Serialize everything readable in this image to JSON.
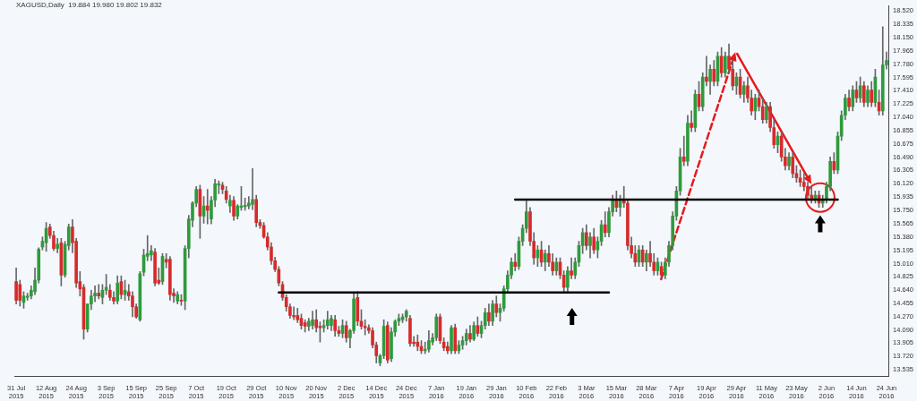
{
  "chart_data": {
    "type": "candlestick",
    "title": "XAGUSD,Daily  19.884 19.980 19.802 19.832",
    "categories": [
      "31 Jul 2015",
      null,
      null,
      null,
      null,
      null,
      null,
      null,
      "12 Aug 2015",
      null,
      null,
      null,
      null,
      null,
      null,
      null,
      "24 Aug 2015",
      null,
      null,
      null,
      null,
      null,
      null,
      null,
      "3 Sep 2015",
      null,
      null,
      null,
      null,
      null,
      null,
      null,
      "15 Sep 2015",
      null,
      null,
      null,
      null,
      null,
      null,
      null,
      "25 Sep 2015",
      null,
      null,
      null,
      null,
      null,
      null,
      null,
      "7 Oct 2015",
      null,
      null,
      null,
      null,
      null,
      null,
      null,
      "19 Oct 2015",
      null,
      null,
      null,
      null,
      null,
      null,
      null,
      "29 Oct 2015",
      null,
      null,
      null,
      null,
      null,
      null,
      null,
      "10 Nov 2015",
      null,
      null,
      null,
      null,
      null,
      null,
      null,
      "20 Nov 2015",
      null,
      null,
      null,
      null,
      null,
      null,
      null,
      "2 Dec 2015",
      null,
      null,
      null,
      null,
      null,
      null,
      null,
      "14 Dec 2015",
      null,
      null,
      null,
      null,
      null,
      null,
      null,
      "24 Dec 2015",
      null,
      null,
      null,
      null,
      null,
      null,
      null,
      "7 Jan 2016",
      null,
      null,
      null,
      null,
      null,
      null,
      null,
      "19 Jan 2016",
      null,
      null,
      null,
      null,
      null,
      null,
      null,
      "29 Jan 2016",
      null,
      null,
      null,
      null,
      null,
      null,
      null,
      "10 Feb 2016",
      null,
      null,
      null,
      null,
      null,
      null,
      null,
      "22 Feb 2016",
      null,
      null,
      null,
      null,
      null,
      null,
      null,
      "3 Mar 2016",
      null,
      null,
      null,
      null,
      null,
      null,
      null,
      "15 Mar 2016",
      null,
      null,
      null,
      null,
      null,
      null,
      null,
      "28 Mar 2016",
      null,
      null,
      null,
      null,
      null,
      null,
      null,
      "7 Apr 2016",
      null,
      null,
      null,
      null,
      null,
      null,
      null,
      "19 Apr 2016",
      null,
      null,
      null,
      null,
      null,
      null,
      null,
      "29 Apr 2016",
      null,
      null,
      null,
      null,
      null,
      null,
      null,
      "11 May 2016",
      null,
      null,
      null,
      null,
      null,
      null,
      null,
      "23 May 2016",
      null,
      null,
      null,
      null,
      null,
      null,
      null,
      "2 Jun 2016",
      null,
      null,
      null,
      null,
      null,
      null,
      null,
      "14 Jun 2016",
      null,
      null,
      null,
      null,
      null,
      null,
      null,
      "24 Jun 2016"
    ],
    "ohlc": [
      [
        14.76,
        14.95,
        14.45,
        14.5
      ],
      [
        14.72,
        14.78,
        14.42,
        14.5
      ],
      [
        14.47,
        14.62,
        14.39,
        14.56
      ],
      [
        14.54,
        14.6,
        14.5,
        14.56
      ],
      [
        14.56,
        14.7,
        14.52,
        14.64
      ],
      [
        14.62,
        14.95,
        14.58,
        14.78
      ],
      [
        14.78,
        15.23,
        14.74,
        15.21
      ],
      [
        15.24,
        15.38,
        15.2,
        15.32
      ],
      [
        15.3,
        15.58,
        15.18,
        15.5
      ],
      [
        15.52,
        15.56,
        15.36,
        15.4
      ],
      [
        15.4,
        15.46,
        15.19,
        15.22
      ],
      [
        15.22,
        15.36,
        15.16,
        15.28
      ],
      [
        15.3,
        15.36,
        14.7,
        14.85
      ],
      [
        14.85,
        15.32,
        14.82,
        15.28
      ],
      [
        15.26,
        15.56,
        15.2,
        15.52
      ],
      [
        15.52,
        15.62,
        15.16,
        15.3
      ],
      [
        15.32,
        15.36,
        14.68,
        14.74
      ],
      [
        14.76,
        14.9,
        14.56,
        14.66
      ],
      [
        14.68,
        14.72,
        13.96,
        14.1
      ],
      [
        14.1,
        14.45,
        14.06,
        14.45
      ],
      [
        14.45,
        14.64,
        14.37,
        14.56
      ],
      [
        14.56,
        14.7,
        14.48,
        14.6
      ],
      [
        14.6,
        14.72,
        14.52,
        14.56
      ],
      [
        14.54,
        14.72,
        14.45,
        14.64
      ],
      [
        14.64,
        14.86,
        14.58,
        14.68
      ],
      [
        14.64,
        14.72,
        14.5,
        14.54
      ],
      [
        14.54,
        14.62,
        14.45,
        14.49
      ],
      [
        14.49,
        14.84,
        14.45,
        14.74
      ],
      [
        14.76,
        14.84,
        14.52,
        14.58
      ],
      [
        14.58,
        14.78,
        14.5,
        14.64
      ],
      [
        14.62,
        14.72,
        14.5,
        14.56
      ],
      [
        14.56,
        14.62,
        14.27,
        14.41
      ],
      [
        14.41,
        14.45,
        14.25,
        14.27
      ],
      [
        14.23,
        14.9,
        14.21,
        14.87
      ],
      [
        14.89,
        15.21,
        14.84,
        15.13
      ],
      [
        15.11,
        15.4,
        15.05,
        15.15
      ],
      [
        15.13,
        15.26,
        15.05,
        15.19
      ],
      [
        15.17,
        15.22,
        14.7,
        14.74
      ],
      [
        14.78,
        14.95,
        14.72,
        14.74
      ],
      [
        14.76,
        15.15,
        14.72,
        15.11
      ],
      [
        15.07,
        15.15,
        14.95,
        15.03
      ],
      [
        15.07,
        15.11,
        14.5,
        14.58
      ],
      [
        14.6,
        14.66,
        14.47,
        14.56
      ],
      [
        14.49,
        14.62,
        14.45,
        14.58
      ],
      [
        14.5,
        14.58,
        14.43,
        14.49
      ],
      [
        14.49,
        15.26,
        14.37,
        15.22
      ],
      [
        15.22,
        15.68,
        15.09,
        15.63
      ],
      [
        15.61,
        15.87,
        15.52,
        15.85
      ],
      [
        15.85,
        16.08,
        15.8,
        16.04
      ],
      [
        16.04,
        16.1,
        15.36,
        15.67
      ],
      [
        15.67,
        15.94,
        15.57,
        15.81
      ],
      [
        15.81,
        16.04,
        15.56,
        15.75
      ],
      [
        15.63,
        15.94,
        15.56,
        15.89
      ],
      [
        15.89,
        16.18,
        15.8,
        16.12
      ],
      [
        16.1,
        16.16,
        15.98,
        16.12
      ],
      [
        16.1,
        16.14,
        15.98,
        16.04
      ],
      [
        16.02,
        16.08,
        15.85,
        15.9
      ],
      [
        15.81,
        15.96,
        15.72,
        15.89
      ],
      [
        15.89,
        15.94,
        15.61,
        15.67
      ],
      [
        15.67,
        15.83,
        15.63,
        15.81
      ],
      [
        15.79,
        16.08,
        15.75,
        15.81
      ],
      [
        15.8,
        15.92,
        15.75,
        15.82
      ],
      [
        15.81,
        15.94,
        15.77,
        15.85
      ],
      [
        15.83,
        16.33,
        15.76,
        15.9
      ],
      [
        15.9,
        15.96,
        15.52,
        15.58
      ],
      [
        15.58,
        15.62,
        15.5,
        15.54
      ],
      [
        15.54,
        15.58,
        15.36,
        15.38
      ],
      [
        15.38,
        15.44,
        15.2,
        15.24
      ],
      [
        15.24,
        15.3,
        15.0,
        15.05
      ],
      [
        15.05,
        15.1,
        14.9,
        14.93
      ],
      [
        14.93,
        14.97,
        14.7,
        14.74
      ],
      [
        14.72,
        14.76,
        14.5,
        14.54
      ],
      [
        14.54,
        14.58,
        14.35,
        14.41
      ],
      [
        14.41,
        14.45,
        14.25,
        14.29
      ],
      [
        14.29,
        14.41,
        14.23,
        14.27
      ],
      [
        14.29,
        14.39,
        14.19,
        14.23
      ],
      [
        14.25,
        14.31,
        14.1,
        14.15
      ],
      [
        14.19,
        14.23,
        14.06,
        14.14
      ],
      [
        14.14,
        14.25,
        14.08,
        14.21
      ],
      [
        14.15,
        14.35,
        14.1,
        14.23
      ],
      [
        14.23,
        14.37,
        14.06,
        14.12
      ],
      [
        14.14,
        14.2,
        13.92,
        14.12
      ],
      [
        14.12,
        14.23,
        14.06,
        14.15
      ],
      [
        14.15,
        14.35,
        14.1,
        14.23
      ],
      [
        14.15,
        14.29,
        14.08,
        14.25
      ],
      [
        14.23,
        14.29,
        14.0,
        14.08
      ],
      [
        14.08,
        14.14,
        14.0,
        14.04
      ],
      [
        14.04,
        14.23,
        13.98,
        14.15
      ],
      [
        14.15,
        14.21,
        13.92,
        13.98
      ],
      [
        13.98,
        14.1,
        13.84,
        14.08
      ],
      [
        14.08,
        14.6,
        14.04,
        14.52
      ],
      [
        14.54,
        14.62,
        14.15,
        14.21
      ],
      [
        14.21,
        14.37,
        14.1,
        14.14
      ],
      [
        14.14,
        14.23,
        14.02,
        14.12
      ],
      [
        14.12,
        14.16,
        14.04,
        14.08
      ],
      [
        14.08,
        14.12,
        13.84,
        13.88
      ],
      [
        13.88,
        13.92,
        13.63,
        13.73
      ],
      [
        13.63,
        13.75,
        13.59,
        13.73
      ],
      [
        13.73,
        14.23,
        13.69,
        14.14
      ],
      [
        14.15,
        14.2,
        13.63,
        13.67
      ],
      [
        13.69,
        14.12,
        13.65,
        14.06
      ],
      [
        14.06,
        14.23,
        14.0,
        14.21
      ],
      [
        14.21,
        14.31,
        14.15,
        14.25
      ],
      [
        14.23,
        14.31,
        14.19,
        14.27
      ],
      [
        14.27,
        14.37,
        14.21,
        14.35
      ],
      [
        14.25,
        14.29,
        13.86,
        13.9
      ],
      [
        13.92,
        14.0,
        13.86,
        13.9
      ],
      [
        13.92,
        14.02,
        13.8,
        13.86
      ],
      [
        13.86,
        13.94,
        13.76,
        13.8
      ],
      [
        13.8,
        13.92,
        13.76,
        13.82
      ],
      [
        13.82,
        14.08,
        13.78,
        13.94
      ],
      [
        13.92,
        14.04,
        13.88,
        13.98
      ],
      [
        13.98,
        14.31,
        13.94,
        14.27
      ],
      [
        14.27,
        14.31,
        13.9,
        13.94
      ],
      [
        13.92,
        13.98,
        13.8,
        13.84
      ],
      [
        13.86,
        13.92,
        13.76,
        13.8
      ],
      [
        13.8,
        14.15,
        13.76,
        14.12
      ],
      [
        14.12,
        14.17,
        13.76,
        13.8
      ],
      [
        13.8,
        13.94,
        13.76,
        13.88
      ],
      [
        13.88,
        14.0,
        13.82,
        13.94
      ],
      [
        13.94,
        14.1,
        13.88,
        14.04
      ],
      [
        14.04,
        14.15,
        13.92,
        13.96
      ],
      [
        13.96,
        14.2,
        13.94,
        14.15
      ],
      [
        14.15,
        14.27,
        14.0,
        14.04
      ],
      [
        14.04,
        14.21,
        13.98,
        14.15
      ],
      [
        14.15,
        14.39,
        14.1,
        14.33
      ],
      [
        14.33,
        14.45,
        14.15,
        14.21
      ],
      [
        14.21,
        14.5,
        14.15,
        14.45
      ],
      [
        14.45,
        14.56,
        14.27,
        14.33
      ],
      [
        14.33,
        14.45,
        14.21,
        14.39
      ],
      [
        14.39,
        14.7,
        14.35,
        14.66
      ],
      [
        14.66,
        14.91,
        14.6,
        14.85
      ],
      [
        14.85,
        15.09,
        14.8,
        15.03
      ],
      [
        15.03,
        15.15,
        14.91,
        14.97
      ],
      [
        14.97,
        15.38,
        14.93,
        15.32
      ],
      [
        15.32,
        15.55,
        15.26,
        15.5
      ],
      [
        15.5,
        15.88,
        15.44,
        15.73
      ],
      [
        15.73,
        15.79,
        15.26,
        15.32
      ],
      [
        15.32,
        15.44,
        15.0,
        15.09
      ],
      [
        15.09,
        15.26,
        14.97,
        15.2
      ],
      [
        15.2,
        15.32,
        14.97,
        15.03
      ],
      [
        15.03,
        15.2,
        14.91,
        15.15
      ],
      [
        15.15,
        15.26,
        14.97,
        15.03
      ],
      [
        15.03,
        15.15,
        14.85,
        14.91
      ],
      [
        14.91,
        15.09,
        14.85,
        15.03
      ],
      [
        15.03,
        15.09,
        14.8,
        14.85
      ],
      [
        14.85,
        14.91,
        14.62,
        14.68
      ],
      [
        14.68,
        14.97,
        14.62,
        14.91
      ],
      [
        14.91,
        15.09,
        14.8,
        14.85
      ],
      [
        14.85,
        15.09,
        14.8,
        15.03
      ],
      [
        15.03,
        15.32,
        14.97,
        15.26
      ],
      [
        15.26,
        15.5,
        15.15,
        15.44
      ],
      [
        15.44,
        15.55,
        15.2,
        15.26
      ],
      [
        15.26,
        15.44,
        15.09,
        15.38
      ],
      [
        15.38,
        15.5,
        15.15,
        15.2
      ],
      [
        15.2,
        15.38,
        15.09,
        15.32
      ],
      [
        15.32,
        15.61,
        15.26,
        15.55
      ],
      [
        15.55,
        15.73,
        15.38,
        15.44
      ],
      [
        15.44,
        15.79,
        15.38,
        15.73
      ],
      [
        15.73,
        15.96,
        15.67,
        15.9
      ],
      [
        15.9,
        16.02,
        15.73,
        15.79
      ],
      [
        15.79,
        15.96,
        15.67,
        15.9
      ],
      [
        15.9,
        16.08,
        15.79,
        15.85
      ],
      [
        15.85,
        15.9,
        15.2,
        15.26
      ],
      [
        15.26,
        15.38,
        15.09,
        15.15
      ],
      [
        15.15,
        15.26,
        14.97,
        15.03
      ],
      [
        15.03,
        15.26,
        14.97,
        15.2
      ],
      [
        15.2,
        15.26,
        14.97,
        15.03
      ],
      [
        15.03,
        15.2,
        14.91,
        15.15
      ],
      [
        15.15,
        15.32,
        14.97,
        15.03
      ],
      [
        15.03,
        15.15,
        14.85,
        14.91
      ],
      [
        14.91,
        15.09,
        14.85,
        15.03
      ],
      [
        14.97,
        15.03,
        14.8,
        14.85
      ],
      [
        14.85,
        15.09,
        14.8,
        15.03
      ],
      [
        15.03,
        15.32,
        14.97,
        15.26
      ],
      [
        15.26,
        15.73,
        15.2,
        15.67
      ],
      [
        15.67,
        16.08,
        15.61,
        16.02
      ],
      [
        16.02,
        16.61,
        15.96,
        16.49
      ],
      [
        16.49,
        16.78,
        16.37,
        16.43
      ],
      [
        16.43,
        17.07,
        16.37,
        16.96
      ],
      [
        16.96,
        17.13,
        16.84,
        16.9
      ],
      [
        16.9,
        17.42,
        16.84,
        17.36
      ],
      [
        17.36,
        17.54,
        17.13,
        17.19
      ],
      [
        17.19,
        17.66,
        17.13,
        17.6
      ],
      [
        17.6,
        17.89,
        17.48,
        17.54
      ],
      [
        17.54,
        17.77,
        17.36,
        17.71
      ],
      [
        17.71,
        17.83,
        17.48,
        17.54
      ],
      [
        17.54,
        17.95,
        17.48,
        17.89
      ],
      [
        17.89,
        18.01,
        17.6,
        17.66
      ],
      [
        17.66,
        17.95,
        17.6,
        17.89
      ],
      [
        17.89,
        18.06,
        17.66,
        17.71
      ],
      [
        17.71,
        17.83,
        17.42,
        17.48
      ],
      [
        17.48,
        17.66,
        17.36,
        17.6
      ],
      [
        17.6,
        17.71,
        17.31,
        17.36
      ],
      [
        17.36,
        17.54,
        17.25,
        17.48
      ],
      [
        17.48,
        17.6,
        17.25,
        17.31
      ],
      [
        17.31,
        17.42,
        17.07,
        17.13
      ],
      [
        17.13,
        17.36,
        17.01,
        17.31
      ],
      [
        17.31,
        17.42,
        17.13,
        17.19
      ],
      [
        17.19,
        17.31,
        16.96,
        17.01
      ],
      [
        17.01,
        17.25,
        16.96,
        17.19
      ],
      [
        17.19,
        17.25,
        16.84,
        16.9
      ],
      [
        16.9,
        17.01,
        16.61,
        16.66
      ],
      [
        16.66,
        16.84,
        16.55,
        16.78
      ],
      [
        16.78,
        16.84,
        16.43,
        16.49
      ],
      [
        16.49,
        16.61,
        16.31,
        16.37
      ],
      [
        16.37,
        16.55,
        16.31,
        16.49
      ],
      [
        16.49,
        16.55,
        16.2,
        16.26
      ],
      [
        16.26,
        16.37,
        16.14,
        16.2
      ],
      [
        16.2,
        16.31,
        16.08,
        16.14
      ],
      [
        16.14,
        16.26,
        16.02,
        16.08
      ],
      [
        16.08,
        16.14,
        15.9,
        15.96
      ],
      [
        15.96,
        16.08,
        15.85,
        15.9
      ],
      [
        15.9,
        16.02,
        15.85,
        15.96
      ],
      [
        15.96,
        16.02,
        15.79,
        15.85
      ],
      [
        15.85,
        15.96,
        15.79,
        15.9
      ],
      [
        15.9,
        16.14,
        15.85,
        16.08
      ],
      [
        16.08,
        16.49,
        16.02,
        16.43
      ],
      [
        16.43,
        16.55,
        16.26,
        16.31
      ],
      [
        16.31,
        16.84,
        16.26,
        16.78
      ],
      [
        16.78,
        17.13,
        16.72,
        17.07
      ],
      [
        17.07,
        17.36,
        17.01,
        17.31
      ],
      [
        17.31,
        17.42,
        17.13,
        17.19
      ],
      [
        17.19,
        17.48,
        17.13,
        17.42
      ],
      [
        17.42,
        17.54,
        17.25,
        17.31
      ],
      [
        17.31,
        17.6,
        17.25,
        17.48
      ],
      [
        17.48,
        17.54,
        17.19,
        17.25
      ],
      [
        17.25,
        17.48,
        17.19,
        17.42
      ],
      [
        17.42,
        17.54,
        17.19,
        17.25
      ],
      [
        17.25,
        17.71,
        17.19,
        17.6
      ],
      [
        17.25,
        17.42,
        17.07,
        17.13
      ],
      [
        17.13,
        18.3,
        17.07,
        17.77
      ],
      [
        17.77,
        17.95,
        17.71,
        17.83
      ]
    ],
    "series": [
      {
        "type": "line",
        "color": "#000000",
        "values": [
          null,
          null,
          null,
          null,
          null,
          null,
          null,
          null,
          null,
          null,
          null,
          null,
          null,
          null,
          null,
          null,
          null,
          null,
          null,
          null,
          null,
          null,
          null,
          null,
          null,
          null,
          null,
          null,
          null,
          null,
          null,
          null,
          null,
          null,
          null,
          null,
          null,
          null,
          null,
          null,
          null,
          null,
          null,
          null,
          null,
          null,
          null,
          null,
          null,
          null,
          null,
          null,
          null,
          null,
          null,
          null,
          null,
          null,
          null,
          null,
          null,
          null,
          null,
          null,
          null,
          null,
          null,
          null,
          null,
          null,
          14.61,
          null,
          null,
          null,
          null,
          null,
          null,
          null,
          null,
          null,
          null,
          null,
          null,
          null,
          null,
          null,
          null,
          null,
          null,
          null,
          null,
          null,
          null,
          null,
          null,
          null,
          null,
          null,
          null,
          null,
          null,
          null,
          null,
          null,
          null,
          null,
          null,
          null,
          null,
          null,
          null,
          null,
          null,
          null,
          null,
          null,
          null,
          null,
          null,
          null,
          null,
          null,
          null,
          null,
          null,
          null,
          null,
          null,
          null,
          null,
          null,
          null,
          null,
          null,
          null,
          null,
          null,
          null,
          null,
          null,
          null,
          null,
          null,
          null,
          null,
          null,
          null,
          null,
          null,
          null,
          null,
          null,
          null,
          null,
          null,
          null,
          null,
          null,
          14.61,
          null,
          null,
          null,
          null,
          null,
          null,
          null,
          null,
          null,
          null,
          null,
          null,
          null,
          null,
          null,
          null,
          null,
          null,
          null,
          null,
          null,
          null,
          null,
          null,
          null,
          null,
          null,
          null,
          null,
          null,
          null,
          null,
          null,
          null,
          null,
          null,
          null,
          null,
          null,
          null,
          null,
          null,
          null,
          null,
          null,
          null,
          null,
          null,
          null,
          null,
          null,
          null,
          null,
          null,
          null,
          null,
          null,
          null,
          null,
          null,
          null,
          null,
          null,
          null,
          null,
          null,
          null,
          null,
          null,
          null,
          null,
          null,
          null,
          null
        ]
      },
      {
        "type": "line",
        "color": "#000000",
        "values": [
          null,
          null,
          null,
          null,
          null,
          null,
          null,
          null,
          null,
          null,
          null,
          null,
          null,
          null,
          null,
          null,
          null,
          null,
          null,
          null,
          null,
          null,
          null,
          null,
          null,
          null,
          null,
          null,
          null,
          null,
          null,
          null,
          null,
          null,
          null,
          null,
          null,
          null,
          null,
          null,
          null,
          null,
          null,
          null,
          null,
          null,
          null,
          null,
          null,
          null,
          null,
          null,
          null,
          null,
          null,
          null,
          null,
          null,
          null,
          null,
          null,
          null,
          null,
          null,
          null,
          null,
          null,
          null,
          null,
          null,
          null,
          null,
          null,
          null,
          null,
          null,
          null,
          null,
          null,
          null,
          null,
          null,
          null,
          null,
          null,
          null,
          null,
          null,
          null,
          null,
          null,
          null,
          null,
          null,
          null,
          null,
          null,
          null,
          null,
          null,
          null,
          null,
          null,
          null,
          null,
          null,
          null,
          null,
          null,
          null,
          null,
          null,
          null,
          null,
          null,
          null,
          null,
          null,
          null,
          null,
          null,
          null,
          null,
          null,
          null,
          null,
          null,
          null,
          null,
          null,
          null,
          null,
          null,
          15.9,
          null,
          null,
          null,
          null,
          null,
          null,
          null,
          null,
          null,
          null,
          null,
          null,
          null,
          null,
          null,
          null,
          null,
          null,
          null,
          null,
          null,
          null,
          null,
          null,
          null,
          null,
          null,
          null,
          null,
          null,
          null,
          null,
          null,
          null,
          null,
          null,
          null,
          null,
          null,
          null,
          null,
          null,
          null,
          null,
          null,
          null,
          null,
          null,
          null,
          null,
          null,
          null,
          null,
          null,
          null,
          null,
          null,
          null,
          null,
          null,
          null,
          null,
          null,
          null,
          null,
          null,
          null,
          null,
          null,
          null,
          null,
          null,
          null,
          null,
          null,
          null,
          null,
          null,
          null,
          null,
          null,
          null,
          null,
          null,
          null,
          15.9,
          null,
          null,
          null,
          null,
          null,
          null,
          null,
          null,
          null,
          null,
          null,
          null,
          null
        ]
      }
    ],
    "ylim": [
      13.45,
      18.59
    ],
    "yticks": [
      {
        "value": 18.52,
        "label": "18.520"
      },
      {
        "value": 18.335,
        "label": "18.335"
      },
      {
        "value": 18.15,
        "label": "18.150"
      },
      {
        "value": 17.965,
        "label": "17.965"
      },
      {
        "value": 17.78,
        "label": "17.780"
      },
      {
        "value": 17.595,
        "label": "17.595"
      },
      {
        "value": 17.41,
        "label": "17.410"
      },
      {
        "value": 17.225,
        "label": "17.225"
      },
      {
        "value": 17.04,
        "label": "17.040"
      },
      {
        "value": 16.855,
        "label": "16.855"
      },
      {
        "value": 16.675,
        "label": "16.675"
      },
      {
        "value": 16.49,
        "label": "16.490"
      },
      {
        "value": 16.305,
        "label": "16.305"
      },
      {
        "value": 16.12,
        "label": "16.120"
      },
      {
        "value": 15.935,
        "label": "15.935"
      },
      {
        "value": 15.75,
        "label": "15.750"
      },
      {
        "value": 15.565,
        "label": "15.565"
      },
      {
        "value": 15.38,
        "label": "15.380"
      },
      {
        "value": 15.195,
        "label": "15.195"
      },
      {
        "value": 15.01,
        "label": "15.010"
      },
      {
        "value": 14.825,
        "label": "14.825"
      },
      {
        "value": 14.64,
        "label": "14.640"
      },
      {
        "value": 14.455,
        "label": "14.455"
      },
      {
        "value": 14.27,
        "label": "14.270"
      },
      {
        "value": 14.09,
        "label": "14.090"
      },
      {
        "value": 13.905,
        "label": "13.905"
      },
      {
        "value": 13.72,
        "label": "13.720"
      },
      {
        "value": 13.535,
        "label": "13.535"
      }
    ]
  }
}
